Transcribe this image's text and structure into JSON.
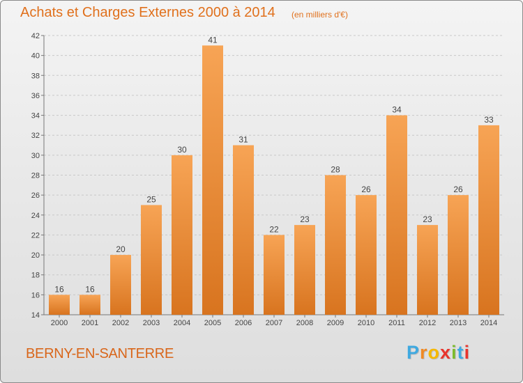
{
  "header": {
    "title": "Achats et Charges Externes 2000 à 2014",
    "subtitle": "(en milliers d'€)"
  },
  "footer": {
    "commune": "BERNY-EN-SANTERRE",
    "logo_letters": [
      "P",
      "r",
      "o",
      "x",
      "i",
      "t",
      "i"
    ],
    "logo_colors": [
      "#3fa9e0",
      "#f08a24",
      "#f5b800",
      "#e8342c",
      "#7cbb2c",
      "#3fa9e0",
      "#e8342c"
    ]
  },
  "chart_data": {
    "type": "bar",
    "title": "Achats et Charges Externes 2000 à 2014",
    "subtitle": "(en milliers d'€)",
    "categories": [
      "2000",
      "2001",
      "2002",
      "2003",
      "2004",
      "2005",
      "2006",
      "2007",
      "2008",
      "2009",
      "2010",
      "2011",
      "2012",
      "2013",
      "2014"
    ],
    "values": [
      16,
      16,
      20,
      25,
      30,
      41,
      31,
      22,
      23,
      28,
      26,
      34,
      23,
      26,
      33
    ],
    "ylim": [
      14,
      42
    ],
    "yticks": [
      14,
      16,
      18,
      20,
      22,
      24,
      26,
      28,
      30,
      32,
      34,
      36,
      38,
      40,
      42
    ],
    "grid": true,
    "bar_color_top": "#f7a455",
    "bar_color_bottom": "#d8741f",
    "xlabel": "",
    "ylabel": ""
  }
}
